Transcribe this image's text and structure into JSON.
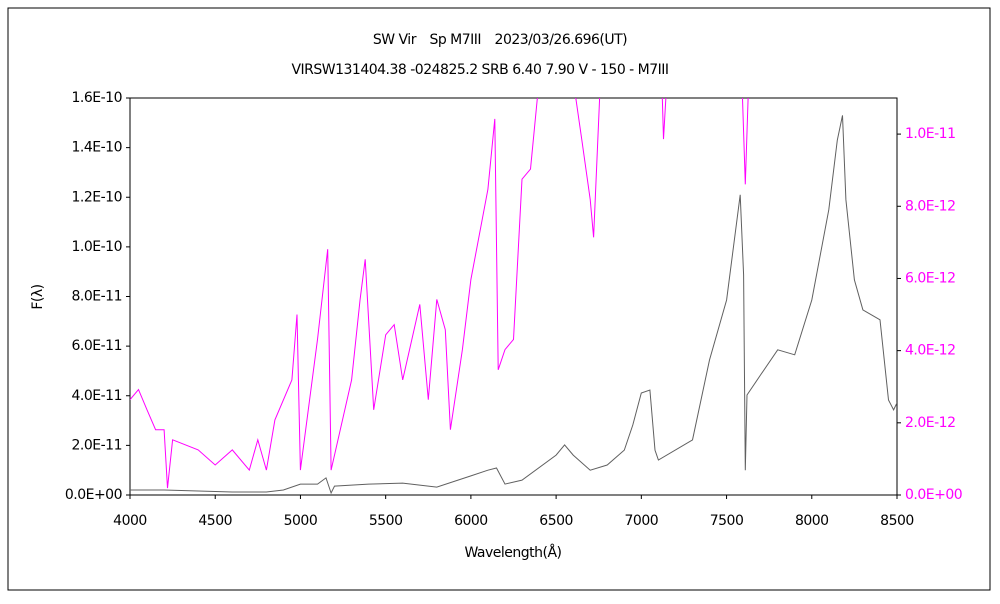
{
  "chart_data": {
    "type": "line",
    "title": "SW Vir　Sp M7III　2023/03/26.696(UT)",
    "subtitle": "VIRSW131404.38 -024825.2 SRB 6.40 7.90 V - 150 - M7III",
    "xlabel": "Wavelength(Å)",
    "ylabel": "F(λ)",
    "xlim": [
      4000,
      8500
    ],
    "xticks": [
      4000,
      4500,
      5000,
      5500,
      6000,
      6500,
      7000,
      7500,
      8000,
      8500
    ],
    "ylim": [
      0,
      1.6e-10
    ],
    "yticks": [
      {
        "value": 0,
        "label": "0.0E+00"
      },
      {
        "value": 2e-11,
        "label": "2.0E-11"
      },
      {
        "value": 4e-11,
        "label": "4.0E-11"
      },
      {
        "value": 6e-11,
        "label": "6.0E-11"
      },
      {
        "value": 8e-11,
        "label": "8.0E-11"
      },
      {
        "value": 1e-10,
        "label": "1.0E-10"
      },
      {
        "value": 1.2e-10,
        "label": "1.2E-10"
      },
      {
        "value": 1.4e-10,
        "label": "1.4E-10"
      },
      {
        "value": 1.6e-10,
        "label": "1.6E-10"
      }
    ],
    "y2lim": [
      0,
      1.1e-11
    ],
    "y2ticks": [
      {
        "value": 0,
        "label": "0.0E+00"
      },
      {
        "value": 2e-12,
        "label": "2.0E-12"
      },
      {
        "value": 4e-12,
        "label": "4.0E-12"
      },
      {
        "value": 6e-12,
        "label": "6.0E-12"
      },
      {
        "value": 8e-12,
        "label": "8.0E-12"
      },
      {
        "value": 1e-11,
        "label": "1.0E-11"
      }
    ],
    "y2color": "#ff00ff",
    "series": [
      {
        "color": "#606060",
        "axis": "y",
        "x": [
          4000,
          4200,
          4400,
          4600,
          4800,
          4900,
          5000,
          5100,
          5150,
          5180,
          5200,
          5400,
          5600,
          5800,
          6000,
          6100,
          6150,
          6200,
          6300,
          6500,
          6550,
          6600,
          6700,
          6800,
          6900,
          6950,
          7000,
          7050,
          7080,
          7100,
          7300,
          7400,
          7500,
          7580,
          7600,
          7610,
          7620,
          7700,
          7800,
          7900,
          8000,
          8100,
          8150,
          8180,
          8200,
          8250,
          8300,
          8400,
          8450,
          8480,
          8500
        ],
        "values": [
          2e-12,
          2e-12,
          1.6e-12,
          1.2e-12,
          1.2e-12,
          2e-12,
          4.4e-12,
          4.4e-12,
          6.9e-12,
          8e-13,
          3.6e-12,
          4.4e-12,
          4.8e-12,
          3.2e-12,
          7.7e-12,
          1e-11,
          1.09e-11,
          4.4e-12,
          6e-12,
          1.61e-11,
          2.02e-11,
          1.61e-11,
          1e-11,
          1.21e-11,
          1.81e-11,
          2.82e-11,
          4.11e-11,
          4.23e-11,
          1.81e-11,
          1.41e-11,
          2.22e-11,
          5.44e-11,
          7.86e-11,
          1.21e-10,
          8.87e-11,
          1e-11,
          4.03e-11,
          4.84e-11,
          5.85e-11,
          5.65e-11,
          7.86e-11,
          1.15e-10,
          1.43e-10,
          1.53e-10,
          1.19e-10,
          8.67e-11,
          7.46e-11,
          7.06e-11,
          3.83e-11,
          3.43e-11,
          3.71e-11
        ]
      },
      {
        "color": "#ff00ff",
        "axis": "y2",
        "x": [
          4000,
          4050,
          4100,
          4150,
          4200,
          4220,
          4250,
          4400,
          4500,
          4600,
          4700,
          4750,
          4800,
          4850,
          4950,
          4980,
          5000,
          5100,
          5160,
          5180,
          5300,
          5350,
          5380,
          5430,
          5500,
          5550,
          5600,
          5700,
          5750,
          5800,
          5850,
          5880,
          5950,
          6000,
          6100,
          6140,
          6160,
          6200,
          6250,
          6300,
          6350,
          6400,
          6600,
          6650,
          6700,
          6720,
          6760,
          7120,
          7130,
          7150,
          7590,
          7610,
          7630
        ],
        "values": [
          2.64e-12,
          2.92e-12,
          2.36e-12,
          1.81e-12,
          1.81e-12,
          1.9e-13,
          1.53e-12,
          1.25e-12,
          8.3e-13,
          1.25e-12,
          6.9e-13,
          1.53e-12,
          6.9e-13,
          2.08e-12,
          3.19e-12,
          5e-12,
          6.9e-13,
          4.31e-12,
          6.81e-12,
          6.9e-13,
          3.19e-12,
          5.42e-12,
          6.53e-12,
          2.36e-12,
          4.44e-12,
          4.72e-12,
          3.19e-12,
          5.28e-12,
          2.64e-12,
          5.42e-12,
          4.58e-12,
          1.81e-12,
          4.03e-12,
          5.97e-12,
          8.47e-12,
          1.042e-11,
          3.47e-12,
          4.03e-12,
          4.31e-12,
          8.75e-12,
          9.03e-12,
          1.15e-11,
          1.15e-11,
          9.86e-12,
          8.19e-12,
          7.14e-12,
          1.15e-11,
          1.15e-11,
          9.86e-12,
          1.15e-11,
          1.15e-11,
          8.61e-12,
          1.15e-11
        ]
      }
    ]
  }
}
